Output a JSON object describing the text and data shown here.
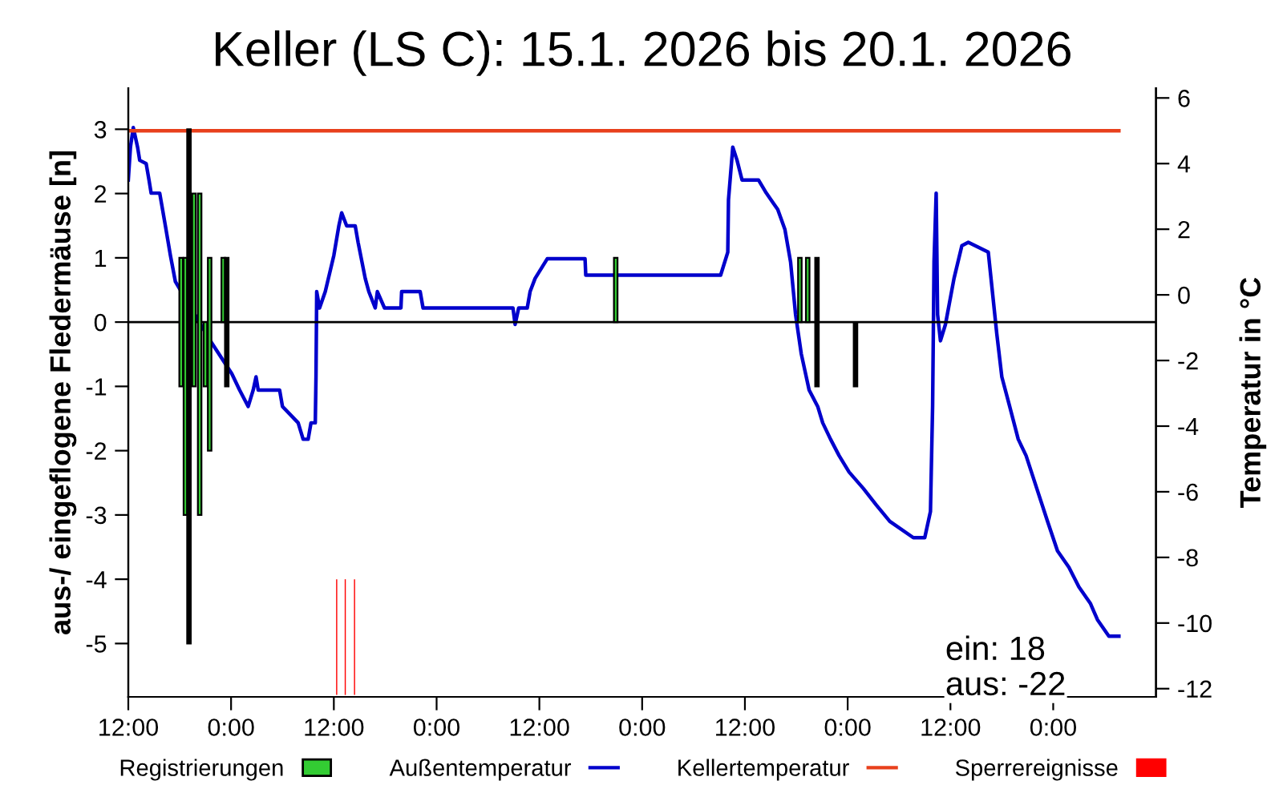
{
  "chart_data": {
    "type": "bar",
    "title": "Keller (LS C): 15.1. 2026 bis 20.1. 2026",
    "ylabel": "aus-/ eingeflogene Fledermäuse [n]",
    "y2label": "Temperatur in °C",
    "xlim": [
      "2026-01-15T12:00",
      "2026-01-20T12:00"
    ],
    "xticks": [
      {
        "value": "2026-01-15T12:00",
        "label": "12:00"
      },
      {
        "value": "2026-01-16T00:00",
        "label": "0:00"
      },
      {
        "value": "2026-01-16T12:00",
        "label": "12:00"
      },
      {
        "value": "2026-01-17T00:00",
        "label": "0:00"
      },
      {
        "value": "2026-01-17T12:00",
        "label": "12:00"
      },
      {
        "value": "2026-01-18T00:00",
        "label": "0:00"
      },
      {
        "value": "2026-01-18T12:00",
        "label": "12:00"
      },
      {
        "value": "2026-01-19T00:00",
        "label": "0:00"
      },
      {
        "value": "2026-01-19T12:00",
        "label": "12:00"
      },
      {
        "value": "2026-01-20T00:00",
        "label": "0:00"
      }
    ],
    "ylim": [
      -5.83,
      3.64
    ],
    "yticks": [
      -5,
      -4,
      -3,
      -2,
      -1,
      0,
      1,
      2,
      3
    ],
    "y2lim": [
      -12.25,
      6.3
    ],
    "y2ticks": [
      -12,
      -10,
      -8,
      -6,
      -4,
      -2,
      0,
      2,
      4,
      6
    ],
    "grid": false,
    "legend": "bottom",
    "ref_lines": [
      {
        "axis": "y",
        "value": 0,
        "color": "#000000"
      }
    ],
    "annotations": [
      "ein: 18",
      "aus: -22"
    ],
    "series": [
      {
        "name": "Registrierungen",
        "color": "#33cc33",
        "x": [
          "2026-01-15T18:10",
          "2026-01-15T18:40",
          "2026-01-15T19:05",
          "2026-01-15T19:40",
          "2026-01-15T20:20",
          "2026-01-15T21:00",
          "2026-01-15T21:30",
          "2026-01-15T23:05",
          "2026-01-15T23:30",
          "2026-01-17T20:55",
          "2026-01-18T18:25",
          "2026-01-18T19:20",
          "2026-01-18T20:25",
          "2026-01-19T00:55"
        ],
        "base": [
          -1,
          -3,
          -5,
          -1,
          -3,
          -1,
          -2,
          0,
          -1,
          0,
          0,
          0,
          -1,
          -1
        ],
        "values": [
          2,
          4,
          8,
          3,
          5,
          1,
          3,
          1,
          2,
          1,
          1,
          1,
          2,
          1
        ],
        "colors": [
          "#33cc33",
          "#33cc33",
          "#000000",
          "#33cc33",
          "#33cc33",
          "#33cc33",
          "#33cc33",
          "#33cc33",
          "#000000",
          "#33cc33",
          "#33cc33",
          "#33cc33",
          "#000000",
          "#000000"
        ]
      },
      {
        "name": "Außentemperatur",
        "type": "line",
        "axis": "y2",
        "color": "#0000cc",
        "x": [
          "2026-01-15T12:00",
          "2026-01-15T12:15",
          "2026-01-15T12:35",
          "2026-01-15T13:05",
          "2026-01-15T13:20",
          "2026-01-15T14:05",
          "2026-01-15T14:25",
          "2026-01-15T14:40",
          "2026-01-15T15:40",
          "2026-01-15T16:20",
          "2026-01-15T16:55",
          "2026-01-15T17:30",
          "2026-01-15T21:35",
          "2026-01-15T22:50",
          "2026-01-16T00:05",
          "2026-01-16T01:00",
          "2026-01-16T02:00",
          "2026-01-16T02:35",
          "2026-01-16T02:55",
          "2026-01-16T03:10",
          "2026-01-16T05:40",
          "2026-01-16T06:00",
          "2026-01-16T07:50",
          "2026-01-16T08:25",
          "2026-01-16T09:00",
          "2026-01-16T09:20",
          "2026-01-16T09:50",
          "2026-01-16T09:55",
          "2026-01-16T10:00",
          "2026-01-16T10:20",
          "2026-01-16T11:00",
          "2026-01-16T12:00",
          "2026-01-16T12:35",
          "2026-01-16T12:55",
          "2026-01-16T13:30",
          "2026-01-16T14:30",
          "2026-01-16T14:50",
          "2026-01-16T15:40",
          "2026-01-16T16:05",
          "2026-01-16T16:50",
          "2026-01-16T17:05",
          "2026-01-16T17:55",
          "2026-01-16T19:50",
          "2026-01-16T19:55",
          "2026-01-16T22:05",
          "2026-01-16T22:25",
          "2026-01-17T08:55",
          "2026-01-17T09:10",
          "2026-01-17T09:35",
          "2026-01-17T10:35",
          "2026-01-17T10:55",
          "2026-01-17T11:30",
          "2026-01-17T12:55",
          "2026-01-17T17:20",
          "2026-01-17T17:25",
          "2026-01-18T09:10",
          "2026-01-18T10:00",
          "2026-01-18T10:05",
          "2026-01-18T10:35",
          "2026-01-18T11:05",
          "2026-01-18T11:40",
          "2026-01-18T13:35",
          "2026-01-18T14:30",
          "2026-01-18T15:50",
          "2026-01-18T16:40",
          "2026-01-18T17:20",
          "2026-01-18T17:55",
          "2026-01-18T18:35",
          "2026-01-18T19:30",
          "2026-01-18T20:30",
          "2026-01-18T21:05",
          "2026-01-18T22:00",
          "2026-01-18T23:00",
          "2026-01-19T00:10",
          "2026-01-19T01:50",
          "2026-01-19T03:20",
          "2026-01-19T04:55",
          "2026-01-19T07:40",
          "2026-01-19T09:00",
          "2026-01-19T09:40",
          "2026-01-19T09:55",
          "2026-01-19T10:05",
          "2026-01-19T10:20",
          "2026-01-19T10:30",
          "2026-01-19T10:50",
          "2026-01-19T11:25",
          "2026-01-19T12:25",
          "2026-01-19T13:20",
          "2026-01-19T14:05",
          "2026-01-19T16:25",
          "2026-01-19T17:25",
          "2026-01-19T18:00",
          "2026-01-19T18:55",
          "2026-01-19T19:55",
          "2026-01-19T20:50",
          "2026-01-19T22:05",
          "2026-01-19T23:20",
          "2026-01-20T00:30",
          "2026-01-20T01:50",
          "2026-01-20T03:00",
          "2026-01-20T04:20",
          "2026-01-20T05:10",
          "2026-01-20T06:30",
          "2026-01-20T07:40"
        ],
        "values": [
          3.5,
          4.5,
          5.1,
          4.5,
          4.1,
          4.0,
          3.5,
          3.1,
          3.1,
          2.1,
          1.2,
          0.4,
          -1.4,
          -1.9,
          -2.4,
          -2.9,
          -3.4,
          -2.9,
          -2.5,
          -2.9,
          -2.9,
          -3.4,
          -3.9,
          -4.4,
          -4.4,
          -3.9,
          -3.9,
          -2.5,
          0.1,
          -0.4,
          0.1,
          1.2,
          2.1,
          2.5,
          2.1,
          2.1,
          1.6,
          0.5,
          0.1,
          -0.4,
          0.1,
          -0.4,
          -0.4,
          0.1,
          0.1,
          -0.4,
          -0.4,
          -0.9,
          -0.4,
          -0.4,
          0.1,
          0.5,
          1.1,
          1.1,
          0.6,
          0.6,
          1.3,
          2.9,
          4.5,
          4.1,
          3.5,
          3.5,
          3.1,
          2.6,
          2.0,
          1.0,
          -0.6,
          -1.8,
          -2.9,
          -3.4,
          -3.9,
          -4.4,
          -4.9,
          -5.4,
          -5.9,
          -6.4,
          -6.9,
          -7.4,
          -7.4,
          -6.6,
          -3.4,
          1.0,
          3.1,
          -0.6,
          -1.4,
          -0.9,
          0.5,
          1.5,
          1.6,
          1.3,
          -1.2,
          -2.5,
          -3.4,
          -4.4,
          -4.9,
          -5.9,
          -6.9,
          -7.8,
          -8.3,
          -8.9,
          -9.4,
          -9.9,
          -10.4,
          -10.4
        ]
      },
      {
        "name": "Kellertemperatur",
        "type": "line",
        "axis": "y2",
        "color": "#e8401c",
        "x": [
          "2026-01-15T12:00",
          "2026-01-20T07:40"
        ],
        "values": [
          5,
          5
        ]
      },
      {
        "name": "Sperrereignisse",
        "color": "#ff0000",
        "x": [
          "2026-01-16T12:20",
          "2026-01-16T13:20",
          "2026-01-16T14:25"
        ],
        "base": [
          -4,
          -4,
          -4
        ],
        "values": [
          -1.8,
          -1.8,
          -1.8
        ]
      }
    ]
  }
}
